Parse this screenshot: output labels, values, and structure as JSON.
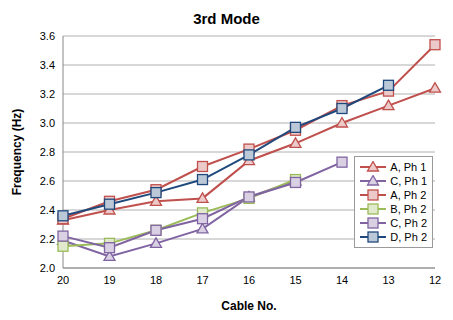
{
  "chart_data": {
    "type": "line",
    "title": "3rd Mode",
    "x_label": "Cable No.",
    "y_label": "Frequency (Hz)",
    "categories": [
      "20",
      "19",
      "18",
      "17",
      "16",
      "15",
      "14",
      "13",
      "12"
    ],
    "series": [
      {
        "name": "A, Ph 1",
        "color": "#c0504d",
        "marker": "triangle",
        "values": [
          2.33,
          2.4,
          2.46,
          2.48,
          2.74,
          2.86,
          3.0,
          3.12,
          3.24
        ]
      },
      {
        "name": "C, Ph 1",
        "color": "#8064a2",
        "marker": "triangle",
        "values": [
          2.19,
          2.08,
          2.17,
          2.27,
          2.49,
          2.6,
          null,
          null,
          null
        ]
      },
      {
        "name": "A, Ph 2",
        "color": "#c0504d",
        "marker": "square",
        "values": [
          2.34,
          2.46,
          2.54,
          2.7,
          2.82,
          2.95,
          3.12,
          3.22,
          3.54
        ]
      },
      {
        "name": "B, Ph 2",
        "color": "#9bbb59",
        "marker": "square",
        "values": [
          2.15,
          2.17,
          2.26,
          2.38,
          2.48,
          2.61,
          null,
          null,
          null
        ]
      },
      {
        "name": "C, Ph 2",
        "color": "#8064a2",
        "marker": "square",
        "values": [
          2.22,
          2.14,
          2.26,
          2.34,
          2.49,
          2.59,
          2.73,
          null,
          null
        ]
      },
      {
        "name": "D, Ph 2",
        "color": "#1f497d",
        "marker": "square",
        "values": [
          2.36,
          2.44,
          2.52,
          2.61,
          2.78,
          2.97,
          3.1,
          3.26,
          null
        ]
      }
    ],
    "ylim": [
      2,
      3.6
    ],
    "yticks": [
      {
        "value": 2,
        "label": "2.0"
      },
      2.2,
      2.4,
      2.6,
      2.8,
      {
        "value": 3,
        "label": "3.0"
      },
      3.2,
      3.4,
      3.6
    ],
    "grid": true,
    "legend": "right"
  }
}
